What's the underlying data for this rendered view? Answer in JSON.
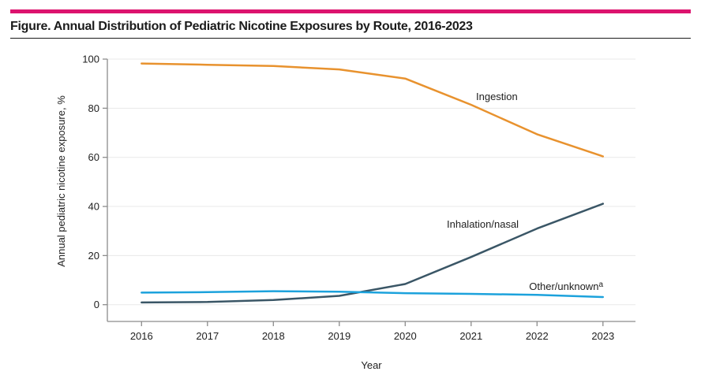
{
  "header": {
    "title": "Figure. Annual Distribution of Pediatric Nicotine Exposures by Route, 2016-2023",
    "accent_color": "#DC136E"
  },
  "chart_data": {
    "type": "line",
    "title": "Figure. Annual Distribution of Pediatric Nicotine Exposures by Route, 2016-2023",
    "x": [
      2016,
      2017,
      2018,
      2019,
      2020,
      2021,
      2022,
      2023
    ],
    "series": [
      {
        "name": "Ingestion",
        "label": "Ingestion",
        "color": "#E8922E",
        "values": [
          98.2,
          97.7,
          97.2,
          95.8,
          92.1,
          81.4,
          69.4,
          60.4
        ]
      },
      {
        "name": "Inhalation/nasal",
        "label": "Inhalation/nasal",
        "color": "#3A5666",
        "values": [
          0.9,
          1.1,
          1.9,
          3.6,
          8.4,
          19.4,
          31.0,
          41.1
        ]
      },
      {
        "name": "Other/unknown",
        "label": "Other/unknown",
        "label_superscript": "a",
        "color": "#1CA2DC",
        "values": [
          4.9,
          5.1,
          5.5,
          5.3,
          4.7,
          4.4,
          4.0,
          3.1
        ]
      }
    ],
    "xlabel": "Year",
    "ylabel": "Annual pediatric nicotine exposure, %",
    "ylim": [
      0,
      100
    ],
    "yticks": [
      0,
      20,
      40,
      60,
      80,
      100
    ],
    "grid": "horizontal-only",
    "legend": "direct-line-labels",
    "axis_color": "#8C8C8C",
    "gridline_color": "#E8E8E8",
    "text_color": "#212121"
  }
}
